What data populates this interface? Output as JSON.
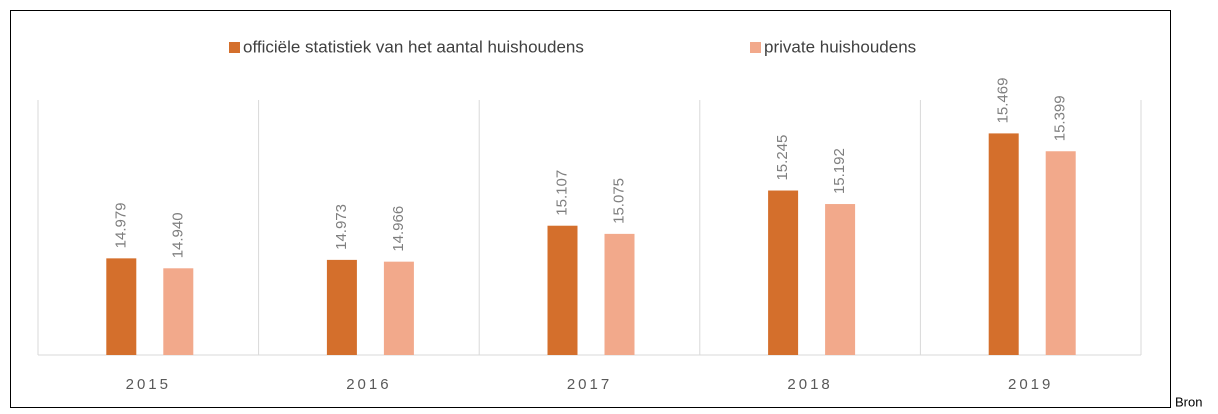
{
  "chart_data": {
    "type": "bar",
    "categories": [
      "2015",
      "2016",
      "2017",
      "2018",
      "2019"
    ],
    "series": [
      {
        "name": "officiële statistiek van het aantal huishoudens",
        "color": "#d46f2c",
        "values": [
          14.979,
          14.973,
          15.107,
          15.245,
          15.469
        ],
        "value_labels": [
          "14.979",
          "14.973",
          "15.107",
          "15.245",
          "15.469"
        ]
      },
      {
        "name": "private huishoudens",
        "color": "#f2a98b",
        "values": [
          14.94,
          14.966,
          15.075,
          15.192,
          15.399
        ],
        "value_labels": [
          "14.940",
          "14.966",
          "15.075",
          "15.192",
          "15.399"
        ]
      }
    ],
    "ylim": [
      14.6,
      15.6
    ],
    "legend": "top",
    "source": "Bron"
  }
}
